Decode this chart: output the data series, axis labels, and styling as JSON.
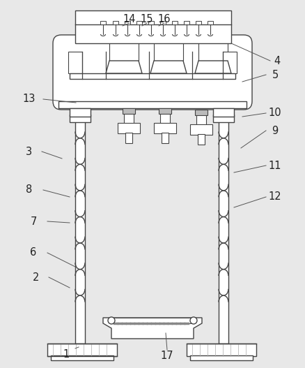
{
  "bg_color": "#e8e8e8",
  "line_color": "#444444",
  "lw": 1.0,
  "label_fontsize": 10.5
}
